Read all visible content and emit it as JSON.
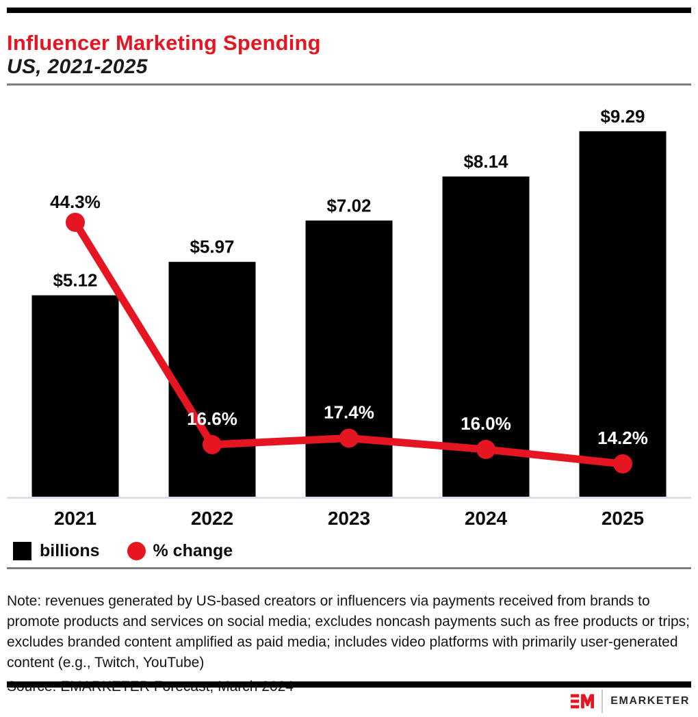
{
  "header": {
    "title": "Influencer Marketing Spending",
    "subtitle": "US, 2021-2025"
  },
  "chart_data": {
    "type": "bar+line",
    "categories": [
      "2021",
      "2022",
      "2023",
      "2024",
      "2025"
    ],
    "series": [
      {
        "name": "billions",
        "type": "bar",
        "unit": "USD billions",
        "values": [
          5.12,
          5.97,
          7.02,
          8.14,
          9.29
        ],
        "labels": [
          "$5.12",
          "$5.97",
          "$7.02",
          "$8.14",
          "$9.29"
        ]
      },
      {
        "name": "% change",
        "type": "line",
        "unit": "percent",
        "values": [
          44.3,
          16.6,
          17.4,
          16.0,
          14.2
        ],
        "labels": [
          "44.3%",
          "16.6%",
          "17.4%",
          "16.0%",
          "14.2%"
        ]
      }
    ],
    "title": "Influencer Marketing Spending",
    "subtitle": "US, 2021-2025",
    "xlabel": "",
    "ylabel": "",
    "axis": {
      "x_ticks": [
        "2021",
        "2022",
        "2023",
        "2024",
        "2025"
      ],
      "y_axis_shown": false,
      "grid": false
    },
    "legend_position": "bottom-left"
  },
  "legend": {
    "bar_label": "billions",
    "line_label": "% change"
  },
  "note": {
    "text": "Note: revenues generated by US-based creators or influencers via payments received from brands to promote products and services on social media; excludes noncash payments such as free products or trips; excludes branded content amplified as paid media; includes video platforms with primarily user-generated content (e.g., Twitch, YouTube)"
  },
  "source": {
    "text": "Source: EMARKETER Forecast, March 2024"
  },
  "branding": {
    "logo_monogram": "EM",
    "logo_text": "EMARKETER"
  },
  "colors": {
    "accent_red": "#e51522",
    "bar_black": "#000000",
    "text_black": "#0b0b0b",
    "white": "#ffffff",
    "divider_gray": "#7e7e7e",
    "axis_line": "#d3dae8"
  }
}
